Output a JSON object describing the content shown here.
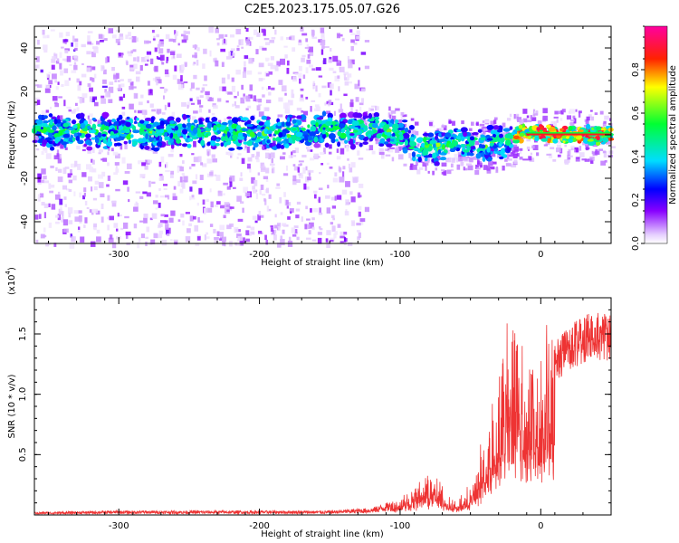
{
  "title": "C2E5.2023.175.05.07.G26",
  "chart_data": [
    {
      "type": "heatmap",
      "xlabel": "Height of straight line (km)",
      "ylabel": "Frequency (Hz)",
      "xlim": [
        -360,
        50
      ],
      "ylim": [
        -50,
        50
      ],
      "xticks": [
        -300,
        -200,
        -100,
        0
      ],
      "yticks": [
        -40,
        -20,
        0,
        20,
        40
      ],
      "colorbar": {
        "label": "Normalized spectral amplitude",
        "range": [
          0,
          1
        ],
        "ticks": [
          "0.0",
          "0.2",
          "0.4",
          "0.6",
          "0.8"
        ]
      },
      "ridge": [
        {
          "x": -360,
          "f": 2
        },
        {
          "x": -300,
          "f": 1
        },
        {
          "x": -250,
          "f": 1
        },
        {
          "x": -200,
          "f": 1
        },
        {
          "x": -150,
          "f": 2
        },
        {
          "x": -120,
          "f": 3
        },
        {
          "x": -105,
          "f": 1
        },
        {
          "x": -90,
          "f": -4
        },
        {
          "x": -75,
          "f": -6
        },
        {
          "x": -60,
          "f": -3
        },
        {
          "x": -45,
          "f": -5
        },
        {
          "x": -25,
          "f": -3
        },
        {
          "x": -15,
          "f": 1
        },
        {
          "x": 0,
          "f": 1
        },
        {
          "x": 20,
          "f": 0
        },
        {
          "x": 50,
          "f": 0
        }
      ]
    },
    {
      "type": "line",
      "xlabel": "Height of straight line (km)",
      "ylabel": "SNR (10 * v/v)",
      "yscale_label": "(x10",
      "yscale_exp": "4",
      "xlim": [
        -360,
        50
      ],
      "ylim": [
        0,
        1.8
      ],
      "xticks": [
        -300,
        -200,
        -100,
        0
      ],
      "yticks": [
        "0.5",
        "1.0",
        "1.5"
      ],
      "series_color": "#ee3333",
      "envelope": [
        {
          "x": -360,
          "y": 0.02
        },
        {
          "x": -300,
          "y": 0.03
        },
        {
          "x": -250,
          "y": 0.03
        },
        {
          "x": -200,
          "y": 0.03
        },
        {
          "x": -150,
          "y": 0.03
        },
        {
          "x": -120,
          "y": 0.05
        },
        {
          "x": -105,
          "y": 0.1
        },
        {
          "x": -95,
          "y": 0.18
        },
        {
          "x": -85,
          "y": 0.25
        },
        {
          "x": -78,
          "y": 0.32
        },
        {
          "x": -70,
          "y": 0.2
        },
        {
          "x": -60,
          "y": 0.1
        },
        {
          "x": -50,
          "y": 0.2
        },
        {
          "x": -40,
          "y": 0.6
        },
        {
          "x": -30,
          "y": 1.1
        },
        {
          "x": -22,
          "y": 1.7
        },
        {
          "x": -15,
          "y": 1.5
        },
        {
          "x": -5,
          "y": 1.2
        },
        {
          "x": 5,
          "y": 1.3
        },
        {
          "x": 20,
          "y": 1.5
        },
        {
          "x": 35,
          "y": 1.6
        },
        {
          "x": 50,
          "y": 1.6
        }
      ]
    }
  ]
}
